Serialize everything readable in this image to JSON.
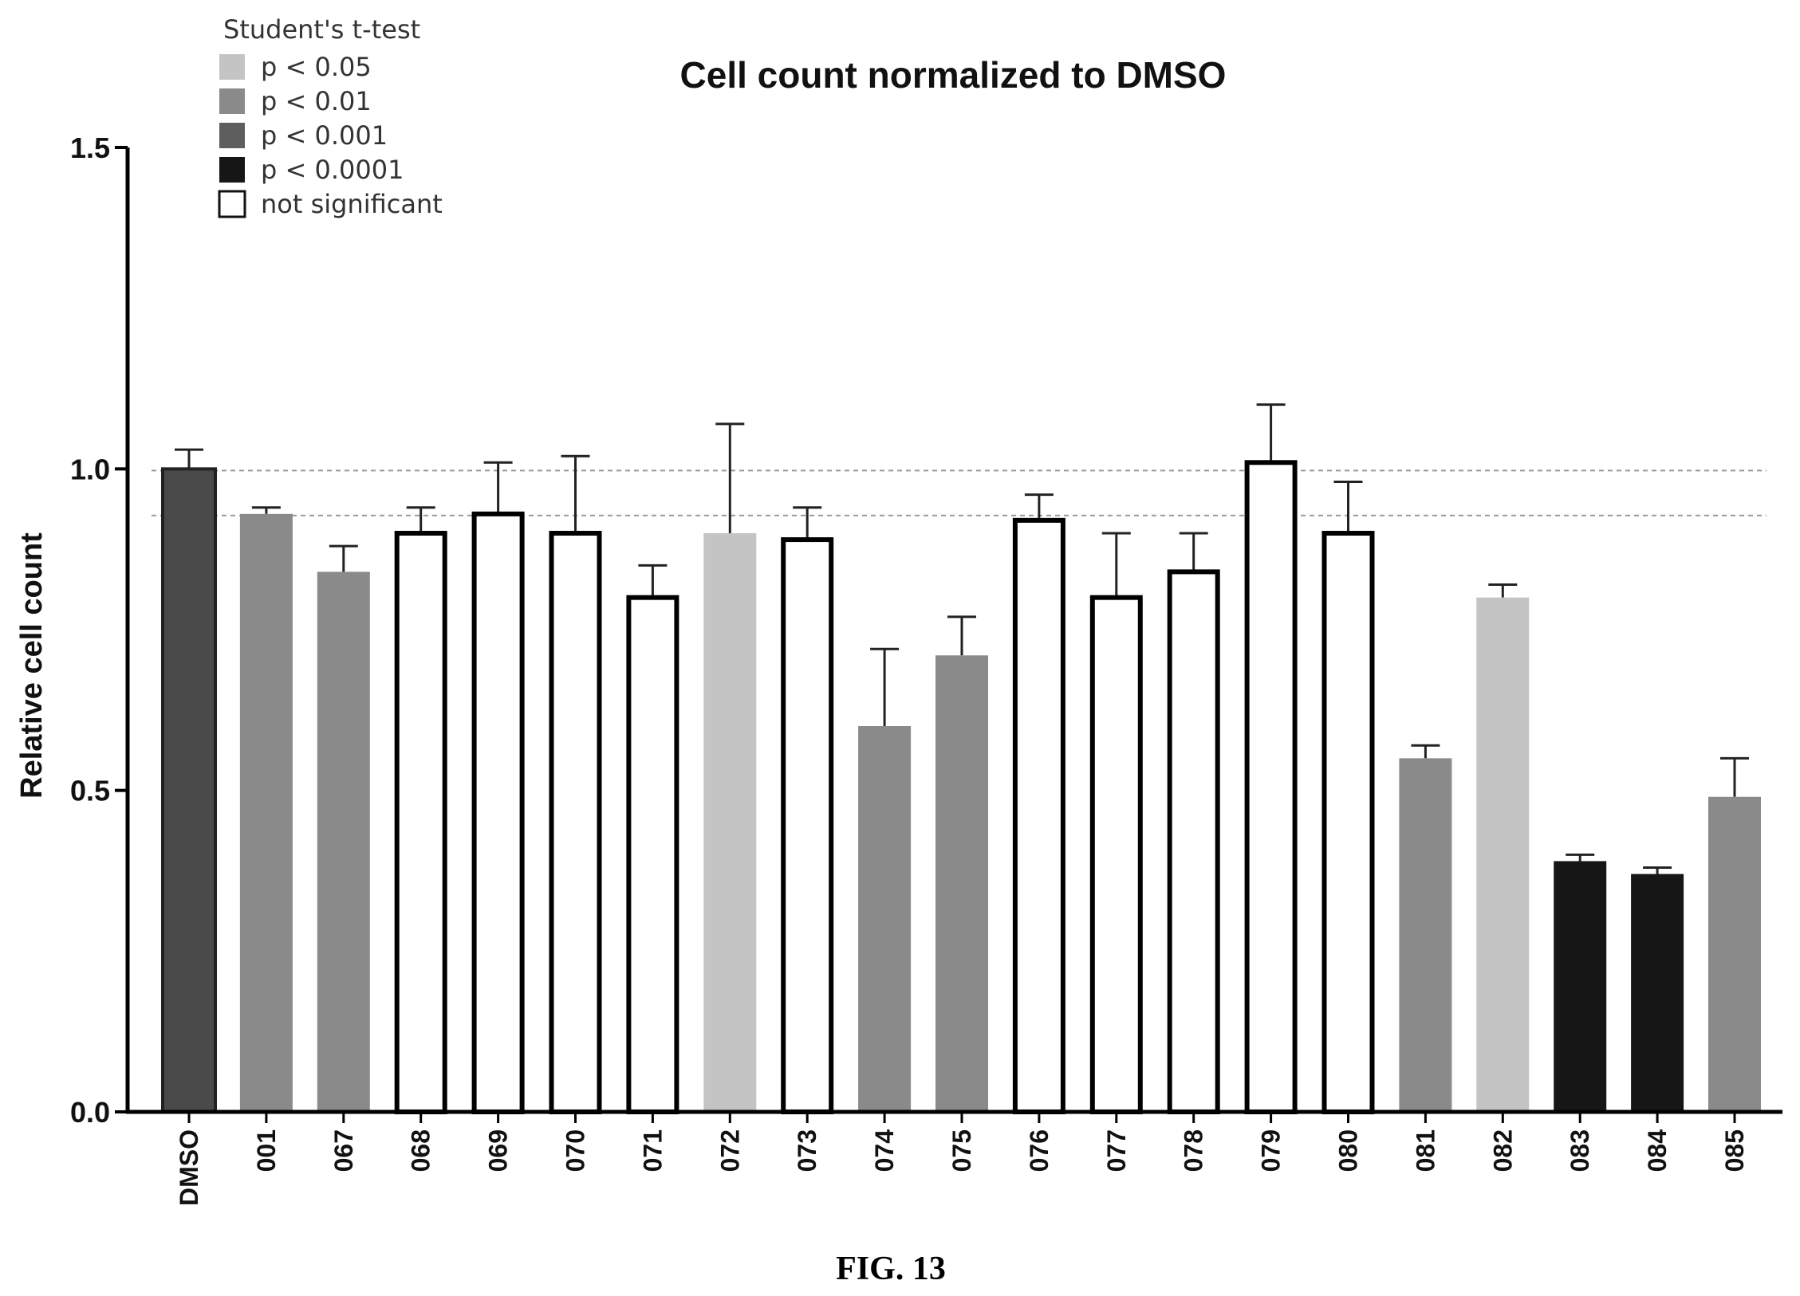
{
  "chart_data": {
    "type": "bar",
    "title": "Cell count normalized to DMSO",
    "ylabel": "Relative cell count",
    "xlabel": "",
    "ylim": [
      0,
      1.5
    ],
    "yticks": [
      "0.0",
      "0.5",
      "1.0",
      "1.5"
    ],
    "ytick_values": [
      0,
      0.5,
      1.0,
      1.5
    ],
    "categories": [
      "DMSO",
      "001",
      "067",
      "068",
      "069",
      "070",
      "071",
      "072",
      "073",
      "074",
      "075",
      "076",
      "077",
      "078",
      "079",
      "080",
      "081",
      "082",
      "083",
      "084",
      "085"
    ],
    "values": [
      1.0,
      0.93,
      0.84,
      0.9,
      0.93,
      0.9,
      0.8,
      0.9,
      0.89,
      0.6,
      0.71,
      0.92,
      0.8,
      0.84,
      1.01,
      0.9,
      0.55,
      0.8,
      0.39,
      0.37,
      0.49
    ],
    "errors": [
      0.03,
      0.01,
      0.04,
      0.04,
      0.08,
      0.12,
      0.05,
      0.17,
      0.05,
      0.12,
      0.06,
      0.04,
      0.1,
      0.06,
      0.09,
      0.08,
      0.02,
      0.02,
      0.01,
      0.01,
      0.06
    ],
    "significance": [
      "ref",
      "p<0.01",
      "p<0.01",
      "ns",
      "ns",
      "ns",
      "ns",
      "p<0.05",
      "ns",
      "p<0.01",
      "p<0.01",
      "ns",
      "ns",
      "ns",
      "ns",
      "ns",
      "p<0.01",
      "p<0.05",
      "p<0.0001",
      "p<0.0001",
      "p<0.01"
    ],
    "reference_lines": [
      1.0,
      0.93
    ],
    "grid": false,
    "legend": {
      "title": "Student's t-test",
      "placement": "top-left",
      "entries": [
        {
          "key": "p<0.05",
          "label": "p < 0.05",
          "color": "#c4c4c4"
        },
        {
          "key": "p<0.01",
          "label": "p < 0.01",
          "color": "#8a8a8a"
        },
        {
          "key": "p<0.001",
          "label": "p < 0.001",
          "color": "#5e5e5e"
        },
        {
          "key": "p<0.0001",
          "label": "p < 0.0001",
          "color": "#161616"
        },
        {
          "key": "ns",
          "label": "not significant",
          "color": "#ffffff"
        }
      ]
    },
    "reference_bar_color": "#4a4a4a",
    "caption": "FIG. 13"
  }
}
